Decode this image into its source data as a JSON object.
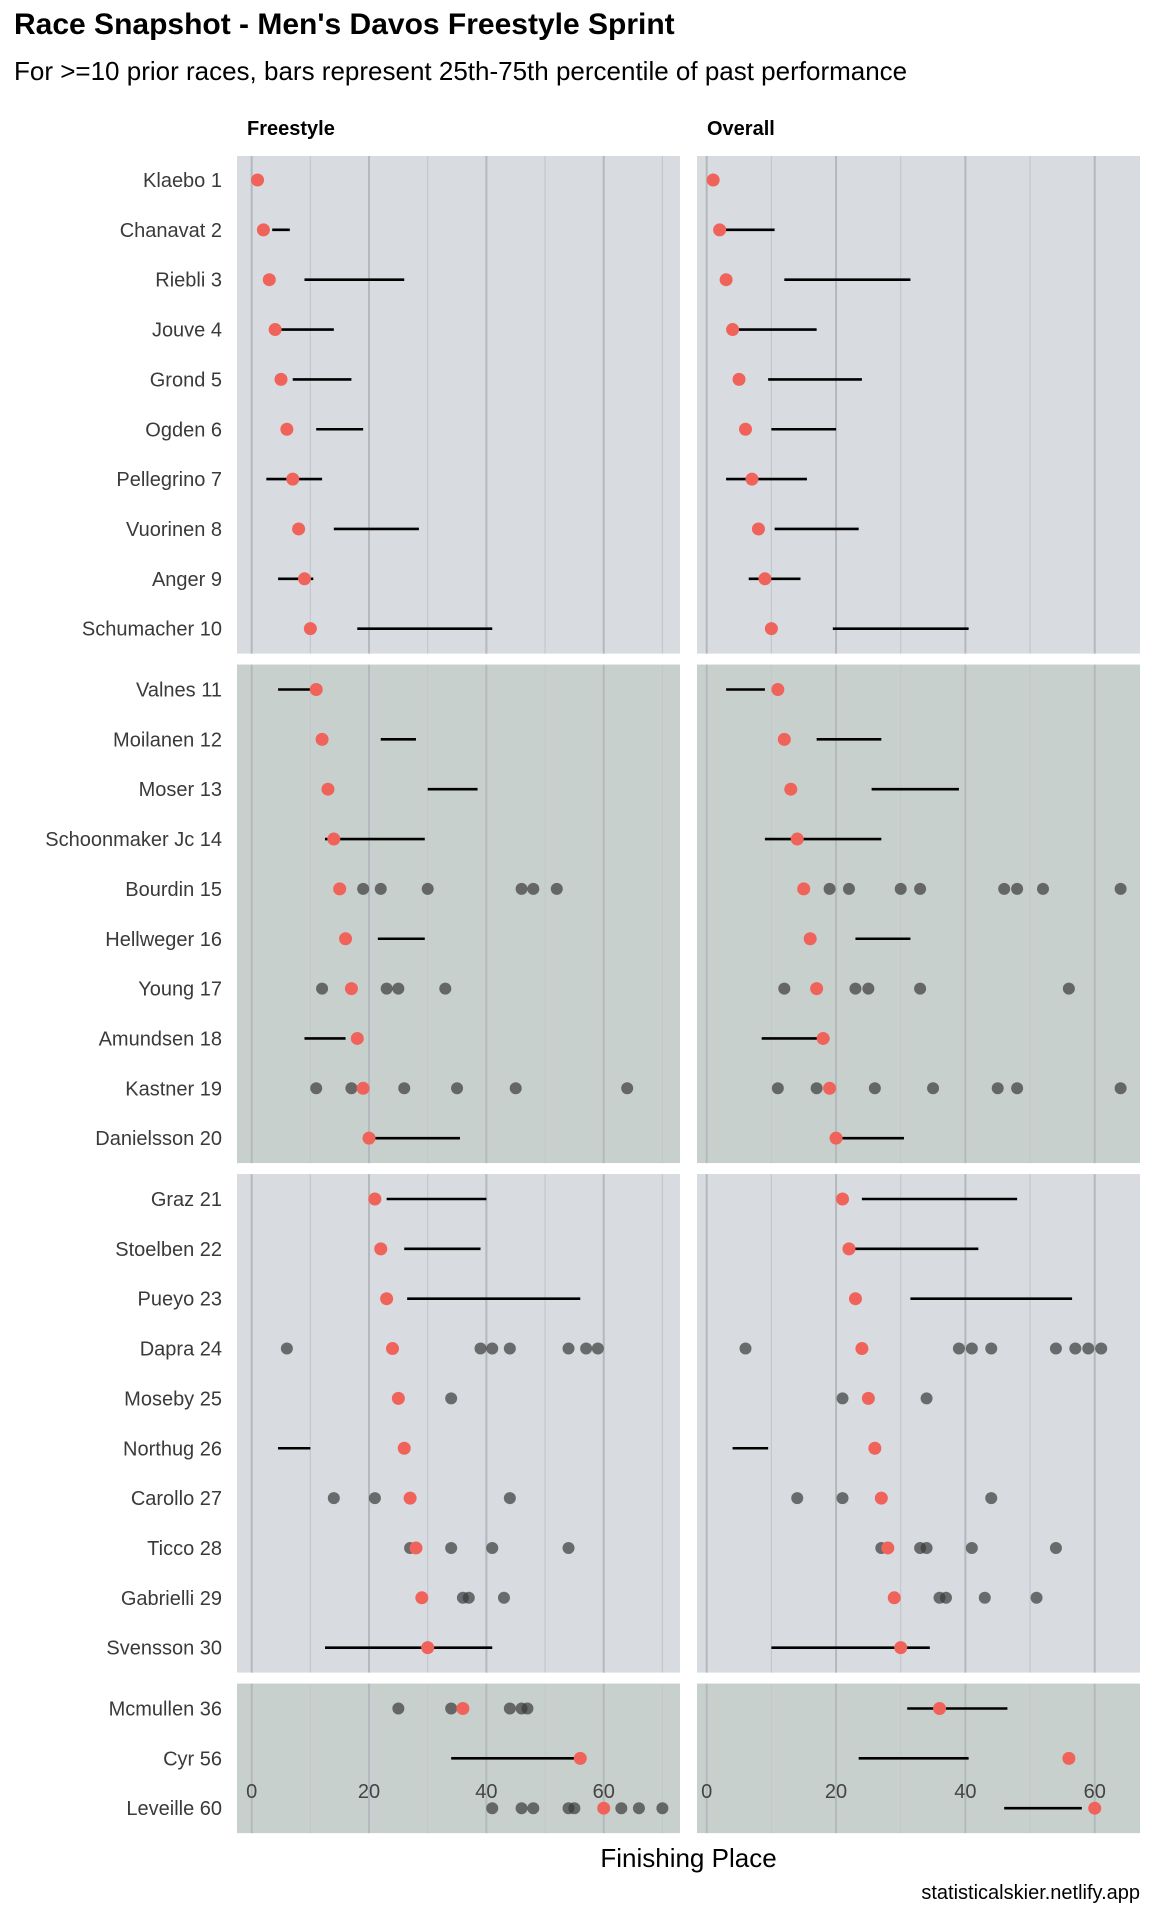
{
  "title": "Race Snapshot -  Men's Davos Freestyle Sprint",
  "subtitle": "For >=10 prior races, bars represent 25th-75th percentile of past performance",
  "caption": "statisticalskier.netlify.app",
  "colors": {
    "panel_light": "#d8dbdf",
    "panel_dark": "#c8d0ce",
    "current_point": "#f0635a",
    "past_point": "#3a3a3a",
    "bar": "#000000"
  },
  "chart_data": {
    "type": "dot-range",
    "xlabel": "Finishing Place",
    "ylabel": "",
    "athletes": [
      "Klaebo 1",
      "Chanavat 2",
      "Riebli 3",
      "Jouve 4",
      "Grond 5",
      "Ogden 6",
      "Pellegrino 7",
      "Vuorinen 8",
      "Anger 9",
      "Schumacher 10",
      "Valnes 11",
      "Moilanen 12",
      "Moser 13",
      "Schoonmaker Jc 14",
      "Bourdin 15",
      "Hellweger 16",
      "Young 17",
      "Amundsen 18",
      "Kastner 19",
      "Danielsson 20",
      "Graz 21",
      "Stoelben 22",
      "Pueyo 23",
      "Dapra 24",
      "Moseby 25",
      "Northug 26",
      "Carollo 27",
      "Ticco 28",
      "Gabrielli 29",
      "Svensson 30",
      "Mcmullen 36",
      "Cyr 56",
      "Leveille 60"
    ],
    "current_place": [
      1,
      2,
      3,
      4,
      5,
      6,
      7,
      8,
      9,
      10,
      11,
      12,
      13,
      14,
      15,
      16,
      17,
      18,
      19,
      20,
      21,
      22,
      23,
      24,
      25,
      26,
      27,
      28,
      29,
      30,
      36,
      56,
      60
    ],
    "groups": [
      10,
      10,
      10,
      3
    ],
    "panels": [
      {
        "name": "Freestyle",
        "xlim": [
          -2.5,
          73
        ],
        "xticks": [
          0,
          20,
          40,
          60
        ],
        "bars": [
          null,
          [
            3.5,
            6.5
          ],
          [
            9,
            26
          ],
          [
            5,
            14
          ],
          [
            7,
            17
          ],
          [
            11,
            19
          ],
          [
            2.5,
            12
          ],
          [
            14,
            28.5
          ],
          [
            4.5,
            10.5
          ],
          [
            18,
            41
          ],
          [
            4.5,
            10.5
          ],
          [
            22,
            28
          ],
          [
            30,
            38.5
          ],
          [
            12.5,
            29.5
          ],
          null,
          [
            21.5,
            29.5
          ],
          null,
          [
            9,
            16
          ],
          null,
          [
            20,
            35.5
          ],
          [
            23,
            40
          ],
          [
            26,
            39
          ],
          [
            26.5,
            56
          ],
          null,
          null,
          [
            4.5,
            10
          ],
          null,
          null,
          null,
          [
            12.5,
            41
          ],
          null,
          [
            34,
            56
          ],
          null
        ],
        "points": [
          [],
          [],
          [],
          [],
          [],
          [],
          [],
          [],
          [],
          [],
          [],
          [],
          [],
          [],
          [
            15,
            19,
            22,
            30,
            46,
            48,
            52
          ],
          [],
          [
            12,
            17,
            23,
            25,
            33
          ],
          [],
          [
            11,
            17,
            19,
            26,
            35,
            45,
            64
          ],
          [],
          [],
          [],
          [],
          [
            6,
            24,
            39,
            41,
            44,
            54,
            57,
            59
          ],
          [
            25,
            34
          ],
          [],
          [
            14,
            21,
            27,
            44
          ],
          [
            27,
            28,
            34,
            41,
            54
          ],
          [
            29,
            36,
            37,
            43
          ],
          [],
          [
            25,
            34,
            36,
            44,
            46,
            47
          ],
          [],
          [
            41,
            46,
            48,
            54,
            55,
            60,
            63,
            66,
            70
          ]
        ]
      },
      {
        "name": "Overall",
        "xlim": [
          -1.5,
          67
        ],
        "xticks": [
          0,
          20,
          40,
          60
        ],
        "bars": [
          null,
          [
            2,
            10.5
          ],
          [
            12,
            31.5
          ],
          [
            4,
            17
          ],
          [
            9.5,
            24
          ],
          [
            10,
            20
          ],
          [
            3,
            15.5
          ],
          [
            10.5,
            23.5
          ],
          [
            6.5,
            14.5
          ],
          [
            19.5,
            40.5
          ],
          [
            3,
            9
          ],
          [
            17,
            27
          ],
          [
            25.5,
            39
          ],
          [
            9,
            27
          ],
          null,
          [
            23,
            31.5
          ],
          null,
          [
            8.5,
            19
          ],
          null,
          [
            19.5,
            30.5
          ],
          [
            24,
            48
          ],
          [
            22,
            42
          ],
          [
            31.5,
            56.5
          ],
          null,
          null,
          [
            4,
            9.5
          ],
          null,
          null,
          null,
          [
            10,
            34.5
          ],
          [
            31,
            46.5
          ],
          [
            23.5,
            40.5
          ],
          [
            46,
            58
          ]
        ],
        "points": [
          [],
          [],
          [],
          [],
          [],
          [],
          [],
          [],
          [],
          [],
          [],
          [],
          [],
          [],
          [
            15,
            19,
            22,
            30,
            33,
            46,
            48,
            52,
            64
          ],
          [],
          [
            12,
            17,
            23,
            25,
            33,
            56
          ],
          [],
          [
            11,
            17,
            19,
            26,
            35,
            45,
            48,
            64
          ],
          [],
          [],
          [],
          [],
          [
            6,
            24,
            39,
            41,
            44,
            54,
            57,
            59,
            61
          ],
          [
            21,
            25,
            34
          ],
          [],
          [
            14,
            21,
            27,
            44
          ],
          [
            27,
            28,
            33,
            34,
            41,
            54
          ],
          [
            29,
            36,
            37,
            43,
            51
          ],
          [],
          [],
          [],
          []
        ]
      }
    ]
  }
}
